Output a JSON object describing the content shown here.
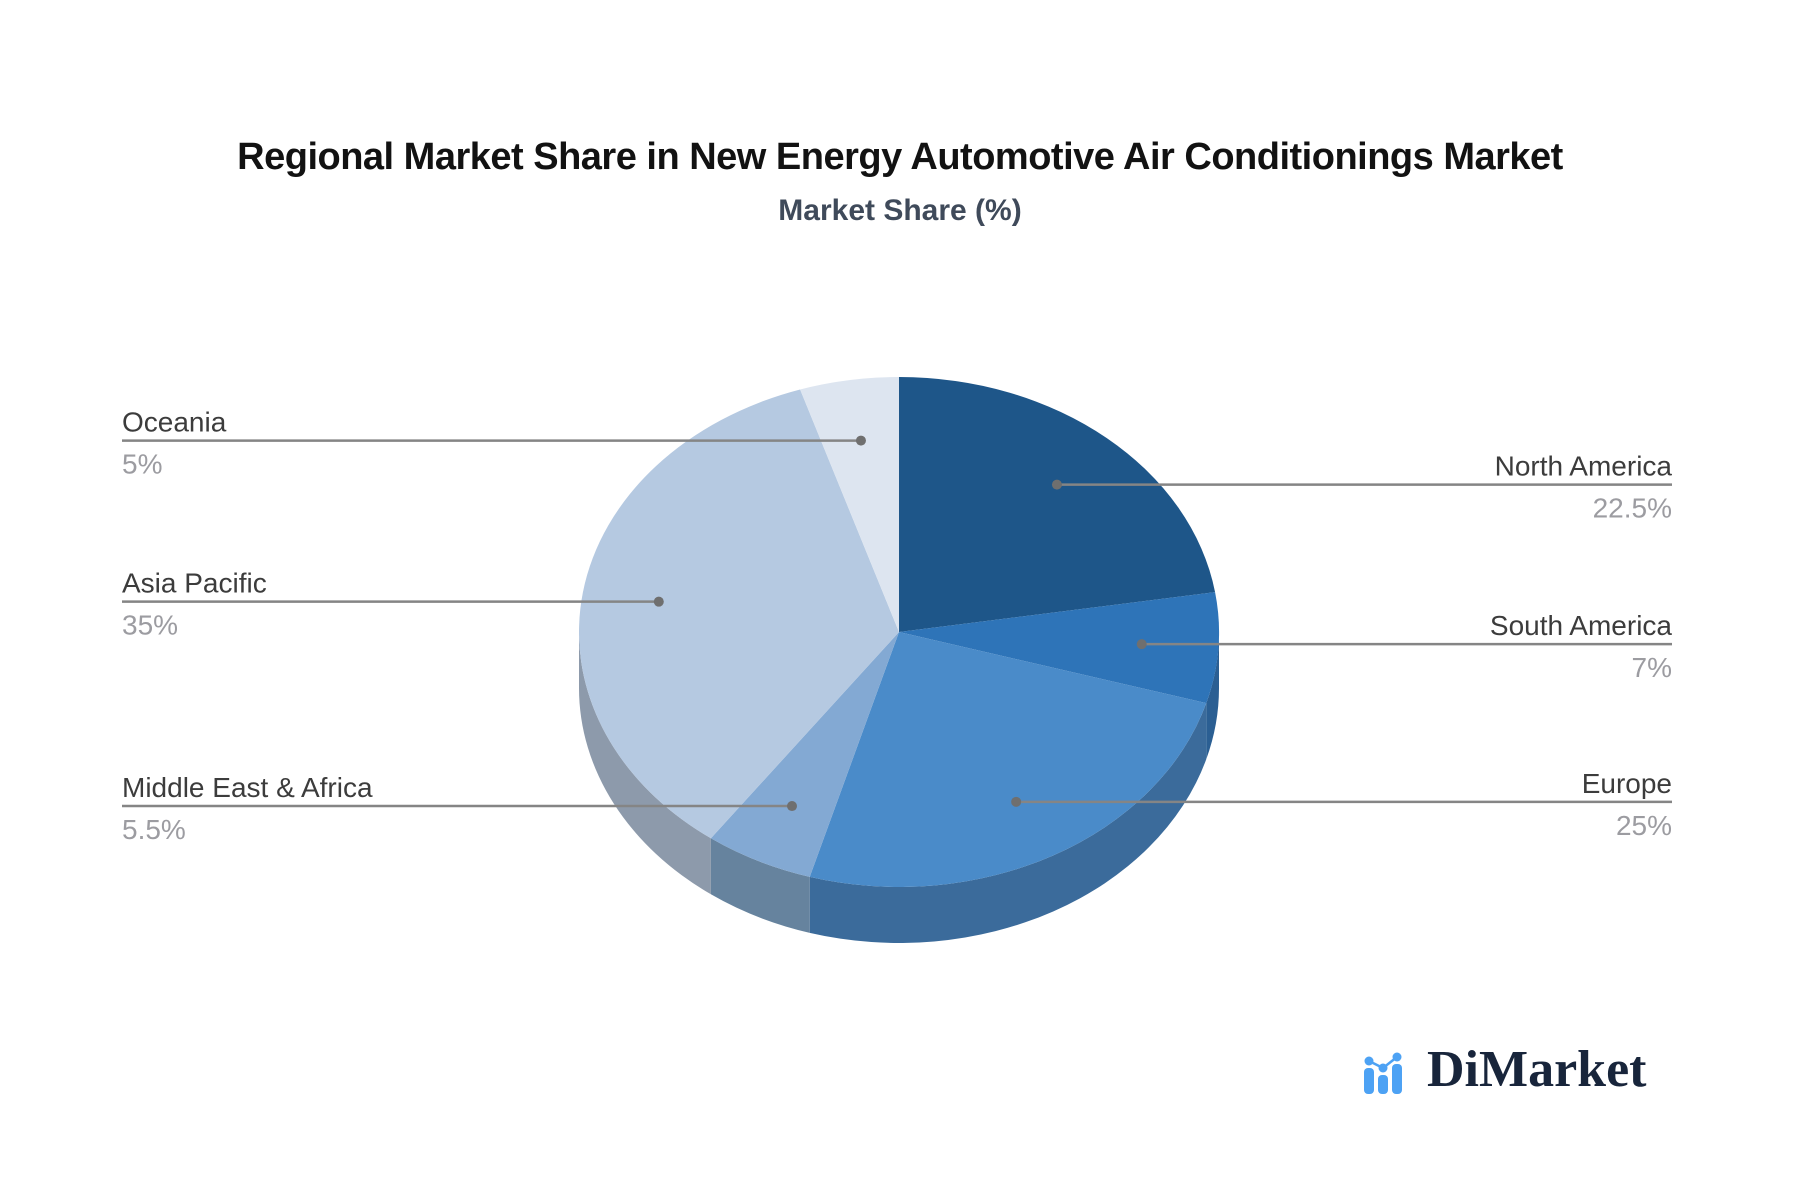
{
  "page": {
    "background": "#ffffff"
  },
  "chart_data": {
    "type": "pie",
    "title": "Regional Market Share in New Energy Automotive Air Conditionings Market",
    "subtitle": "Market Share (%)",
    "value_unit": "%",
    "style": "3d-pie-with-callout-labels",
    "clockwise_from_top": true,
    "slices": [
      {
        "label": "North America",
        "value": 22.5,
        "display_value": "22.5%",
        "color": "#1e5689",
        "side_color": "#1a4a76"
      },
      {
        "label": "South America",
        "value": 7,
        "display_value": "7%",
        "color": "#2e74b8",
        "side_color": "#2b5f93"
      },
      {
        "label": "Europe",
        "value": 25,
        "display_value": "25%",
        "color": "#4a8bc9",
        "side_color": "#3b6b9b"
      },
      {
        "label": "Middle East & Africa",
        "value": 5.5,
        "display_value": "5.5%",
        "color": "#83a9d3",
        "side_color": "#66839e"
      },
      {
        "label": "Asia Pacific",
        "value": 35,
        "display_value": "35%",
        "color": "#b5c9e1",
        "side_color": "#8d9aab"
      },
      {
        "label": "Oceania",
        "value": 5,
        "display_value": "5%",
        "color": "#dde5f0",
        "side_color": "#b9c2d0"
      }
    ],
    "callout": {
      "line_color": "#858585",
      "dot_color": "#6f6f6f",
      "label_color": "#3c3c3c",
      "value_color": "#9c9ca1"
    }
  },
  "branding": {
    "name": "DiMarket",
    "icon": "bar-chart-logo-icon",
    "icon_color": "#4da2f4",
    "text_color": "#18253b"
  }
}
